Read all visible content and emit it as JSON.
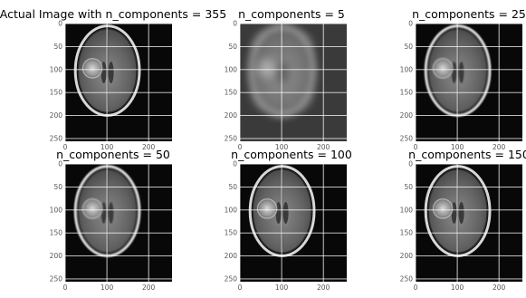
{
  "panels": [
    {
      "title": "Actual Image with n_components = 355",
      "n_components": 355
    },
    {
      "title": "n_components = 5",
      "n_components": 5
    },
    {
      "title": "n_components = 25",
      "n_components": 25
    },
    {
      "title": "n_components = 50",
      "n_components": 50
    },
    {
      "title": "n_components = 100",
      "n_components": 100
    },
    {
      "title": "n_components = 150",
      "n_components": 150
    }
  ],
  "x_ticks": [
    "0",
    "100",
    "200"
  ],
  "y_ticks": [
    "0",
    "50",
    "100",
    "150",
    "200",
    "250"
  ]
}
